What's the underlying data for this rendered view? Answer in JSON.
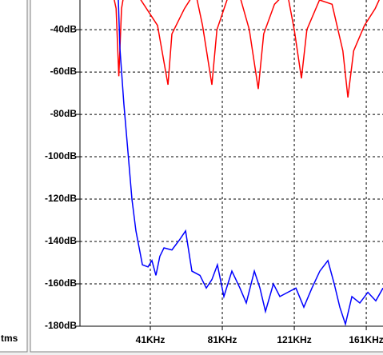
{
  "left_panel": {
    "label": "tms"
  },
  "chart_data": {
    "type": "line",
    "xlim": [
      1.9,
      170.3
    ],
    "ylim": [
      -180,
      -26
    ],
    "xticks": [
      {
        "value": 41,
        "label": "41KHz"
      },
      {
        "value": 81,
        "label": "81KHz"
      },
      {
        "value": 121,
        "label": "121KHz"
      },
      {
        "value": 161,
        "label": "161KHz"
      }
    ],
    "yticks": [
      {
        "value": -40,
        "label": "-40dB"
      },
      {
        "value": -60,
        "label": "-60dB"
      },
      {
        "value": -80,
        "label": "-80dB"
      },
      {
        "value": -100,
        "label": "-100dB"
      },
      {
        "value": -120,
        "label": "-120dB"
      },
      {
        "value": -140,
        "label": "-140dB"
      },
      {
        "value": -160,
        "label": "-160dB"
      },
      {
        "value": -180,
        "label": "-180dB"
      }
    ],
    "grid": true,
    "series": [
      {
        "color": "#ff0000",
        "x": [
          1.9,
          20,
          22,
          23.5,
          25,
          27,
          35,
          45,
          50.8,
          53,
          60,
          66,
          70,
          75.2,
          78,
          84,
          90,
          96,
          101,
          104,
          110,
          117,
          121,
          125,
          128,
          135,
          142,
          148,
          150.8,
          154,
          160,
          166,
          170.3
        ],
        "values": [
          -22,
          -22,
          -30,
          -62,
          -30,
          -20,
          -25,
          -38,
          -66,
          -42,
          -30,
          -22,
          -38,
          -66,
          -40,
          -25,
          -22,
          -40,
          -68,
          -42,
          -28,
          -22,
          -40,
          -63,
          -40,
          -26,
          -28,
          -50,
          -72,
          -50,
          -38,
          -30,
          -22
        ]
      },
      {
        "color": "#0000ff",
        "x": [
          1.9,
          7.2,
          19.7,
          23.2,
          24.1,
          26.3,
          28.6,
          30.8,
          33.0,
          36.6,
          39.7,
          41.9,
          44.1,
          46.3,
          48.6,
          53.0,
          57.4,
          60.6,
          64.1,
          68.6,
          72.1,
          75.2,
          78.3,
          81.9,
          86.3,
          90.8,
          94.3,
          98.8,
          101.9,
          105.0,
          109.4,
          113.0,
          117.4,
          121.9,
          126.3,
          130.8,
          135.2,
          139.7,
          143.2,
          146.3,
          149.4,
          153.0,
          157.4,
          161.9,
          166.3,
          170.3
        ],
        "values": [
          -22,
          -22,
          -22,
          -25,
          -49,
          -75,
          -98,
          -120,
          -135,
          -151,
          -152,
          -149,
          -156,
          -147,
          -143,
          -144,
          -139,
          -135,
          -154,
          -156,
          -162,
          -158,
          -151,
          -166,
          -154,
          -162,
          -169,
          -154,
          -162,
          -173,
          -160,
          -166,
          -164,
          -162,
          -171,
          -162,
          -154,
          -149,
          -160,
          -171,
          -179,
          -166,
          -169,
          -164,
          -168,
          -162
        ]
      }
    ]
  }
}
